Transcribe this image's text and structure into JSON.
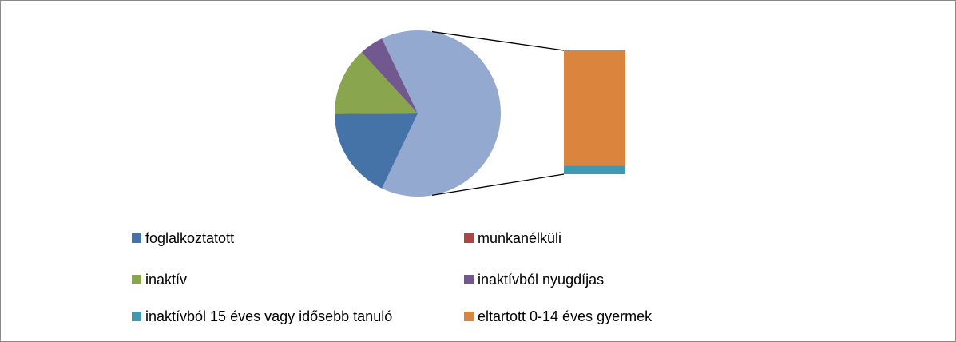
{
  "chart_data": {
    "type": "bar-of-pie",
    "categories": [
      "foglalkoztatott",
      "munkanélküli",
      "inaktív",
      "inaktívból nyugdíjas",
      "inaktívból 15 éves vagy idősebb tanuló",
      "eltartott 0-14 éves gyermek"
    ],
    "values": [
      17.8,
      0,
      13.3,
      4.7,
      4.5,
      59.7
    ],
    "colors": [
      "#4572a7",
      "#aa4643",
      "#89a54e",
      "#71588f",
      "#4198af",
      "#db843d"
    ],
    "other_color": "#93a9cf"
  }
}
